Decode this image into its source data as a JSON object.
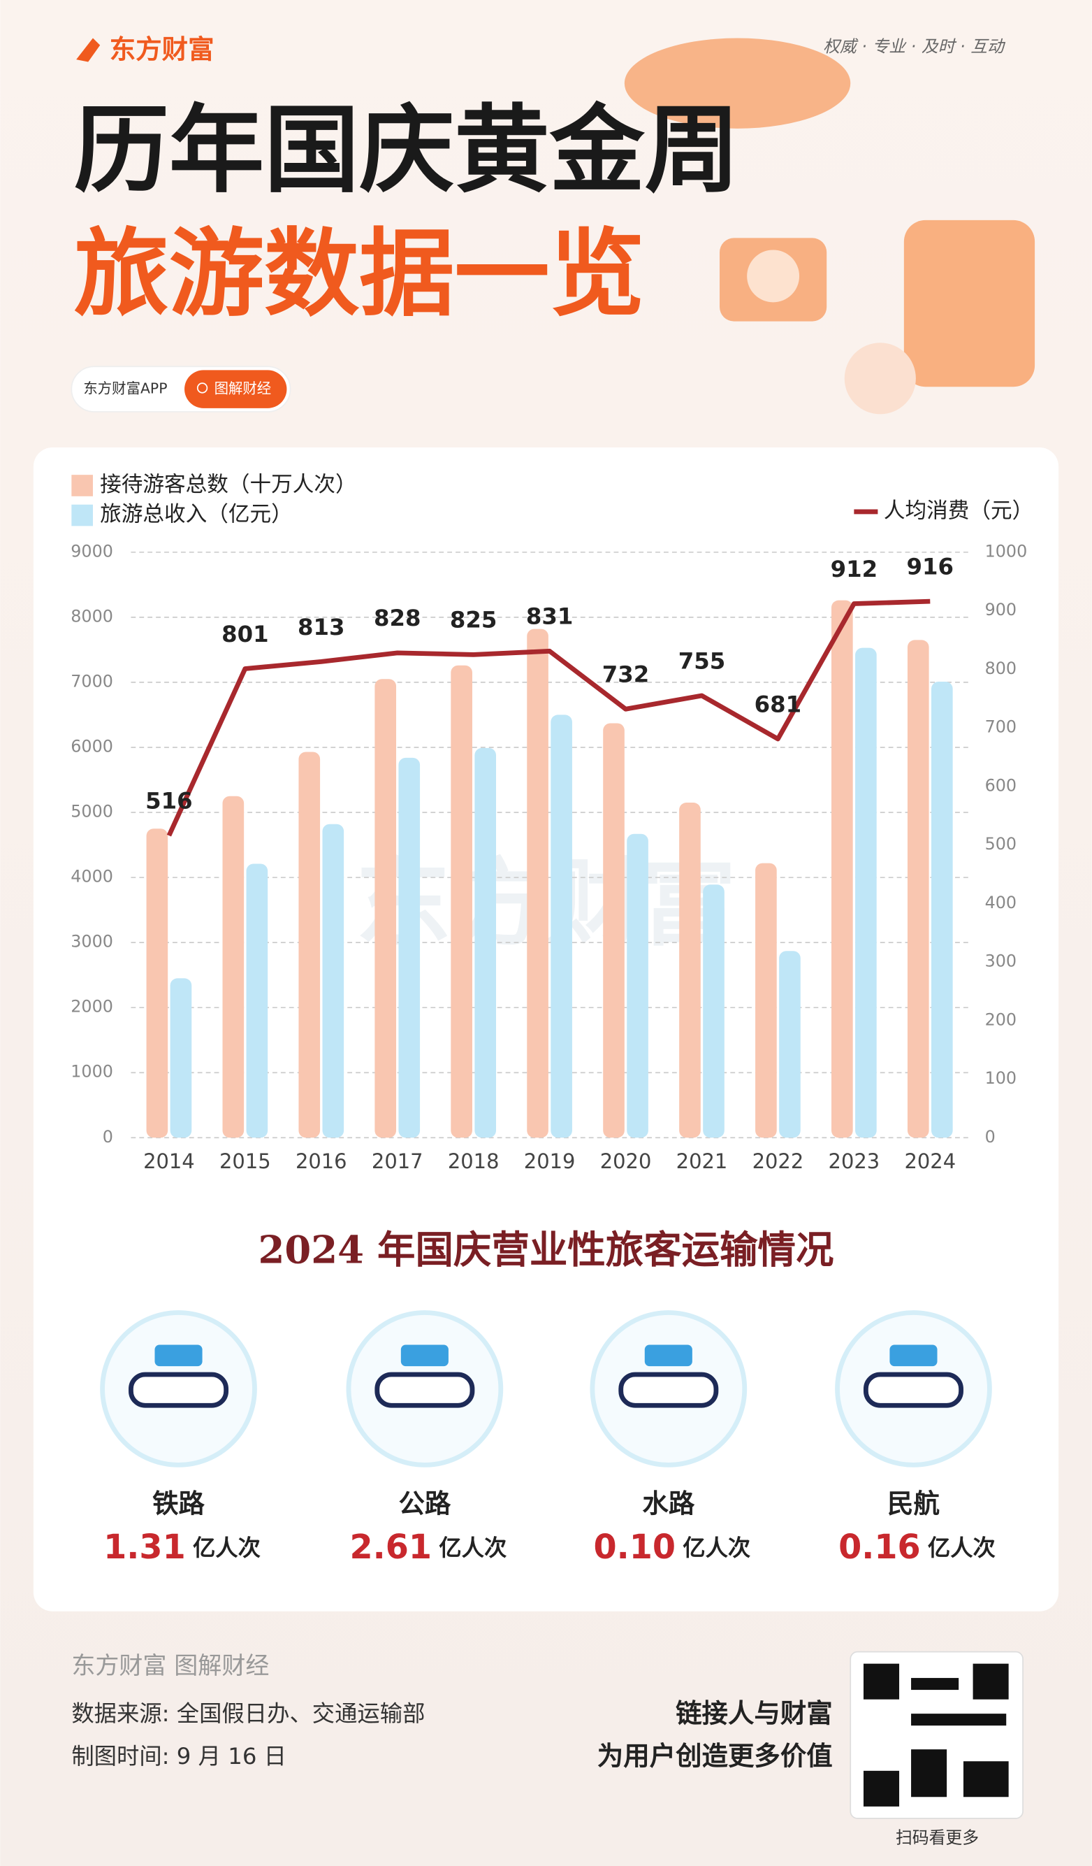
{
  "header": {
    "brand": "东方财富",
    "tagline": "权威 · 专业 · 及时 · 互动",
    "title_line1": "历年国庆黄金周",
    "title_line2": "旅游数据一览",
    "app": "东方财富APP",
    "pill": "图解财经"
  },
  "chart_data": {
    "type": "bar",
    "categories": [
      "2014",
      "2015",
      "2016",
      "2017",
      "2018",
      "2019",
      "2020",
      "2021",
      "2022",
      "2023",
      "2024"
    ],
    "series": [
      {
        "name": "接待游客总数（十万人次）",
        "color": "#f9c6b0",
        "values": [
          4750,
          5250,
          5930,
          7050,
          7260,
          7820,
          6370,
          5150,
          4220,
          8260,
          7650
        ]
      },
      {
        "name": "旅游总收入（亿元）",
        "color": "#bfe6f7",
        "values": [
          2450,
          4210,
          4820,
          5840,
          5990,
          6500,
          4670,
          3890,
          2870,
          7530,
          7010
        ]
      },
      {
        "name": "人均消费（元）",
        "color": "#a8282d",
        "type": "line",
        "axis": "y2",
        "values": [
          516,
          801,
          813,
          828,
          825,
          831,
          732,
          755,
          681,
          912,
          916
        ]
      }
    ],
    "ylim": [
      0,
      9000
    ],
    "yticks": [
      0,
      1000,
      2000,
      3000,
      4000,
      5000,
      6000,
      7000,
      8000,
      9000
    ],
    "y2lim": [
      0,
      1000
    ],
    "y2ticks": [
      0,
      100,
      200,
      300,
      400,
      500,
      600,
      700,
      800,
      900,
      1000
    ],
    "grid": true,
    "watermark": "东方财富"
  },
  "transport": {
    "title": "2024 年国庆营业性旅客运输情况",
    "items": [
      {
        "name": "铁路",
        "value": "1.31",
        "unit": "亿人次"
      },
      {
        "name": "公路",
        "value": "2.61",
        "unit": "亿人次"
      },
      {
        "name": "水路",
        "value": "0.10",
        "unit": "亿人次"
      },
      {
        "name": "民航",
        "value": "0.16",
        "unit": "亿人次"
      }
    ]
  },
  "footer": {
    "brand": "东方财富 图解财经",
    "source": "数据来源: 全国假日办、交通运输部",
    "date": "制图时间: 9 月 16 日",
    "slogan1": "链接人与财富",
    "slogan2": "为用户创造更多价值",
    "qr": "扫码看更多"
  }
}
